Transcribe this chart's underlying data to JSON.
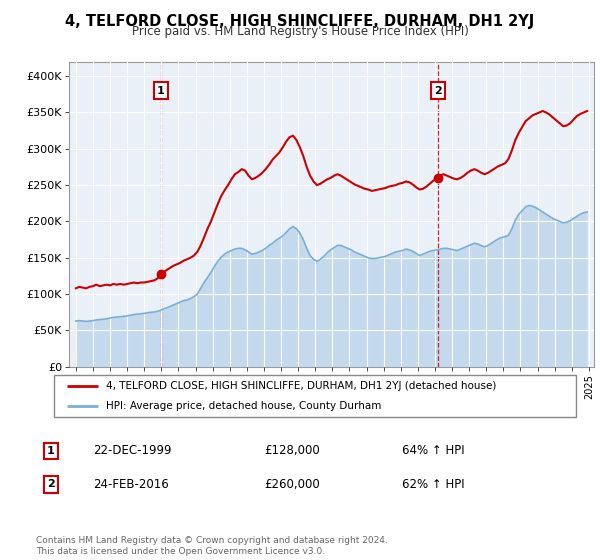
{
  "title": "4, TELFORD CLOSE, HIGH SHINCLIFFE, DURHAM, DH1 2YJ",
  "subtitle": "Price paid vs. HM Land Registry's House Price Index (HPI)",
  "legend_line1": "4, TELFORD CLOSE, HIGH SHINCLIFFE, DURHAM, DH1 2YJ (detached house)",
  "legend_line2": "HPI: Average price, detached house, County Durham",
  "transaction1_label": "1",
  "transaction1_date": "22-DEC-1999",
  "transaction1_price": "£128,000",
  "transaction1_hpi": "64% ↑ HPI",
  "transaction2_label": "2",
  "transaction2_date": "24-FEB-2016",
  "transaction2_price": "£260,000",
  "transaction2_hpi": "62% ↑ HPI",
  "footer": "Contains HM Land Registry data © Crown copyright and database right 2024.\nThis data is licensed under the Open Government Licence v3.0.",
  "price_color": "#cc0000",
  "hpi_color": "#7aafd4",
  "hpi_fill_color": "#c5d9ee",
  "background_color": "#eaf0f8",
  "ylim": [
    0,
    420000
  ],
  "yticks": [
    0,
    50000,
    100000,
    150000,
    200000,
    250000,
    300000,
    350000,
    400000
  ],
  "ytick_labels": [
    "£0",
    "£50K",
    "£100K",
    "£150K",
    "£200K",
    "£250K",
    "£300K",
    "£350K",
    "£400K"
  ],
  "transaction1_year": 1999.97,
  "transaction1_value": 128000,
  "transaction2_year": 2016.15,
  "transaction2_value": 260000,
  "price_data": [
    [
      1995.0,
      108000
    ],
    [
      1995.2,
      110000
    ],
    [
      1995.4,
      109000
    ],
    [
      1995.6,
      108000
    ],
    [
      1995.8,
      110000
    ],
    [
      1996.0,
      111000
    ],
    [
      1996.2,
      113000
    ],
    [
      1996.4,
      111000
    ],
    [
      1996.6,
      112000
    ],
    [
      1996.8,
      113000
    ],
    [
      1997.0,
      112000
    ],
    [
      1997.2,
      114000
    ],
    [
      1997.4,
      113000
    ],
    [
      1997.6,
      114000
    ],
    [
      1997.8,
      113000
    ],
    [
      1998.0,
      114000
    ],
    [
      1998.2,
      115000
    ],
    [
      1998.4,
      116000
    ],
    [
      1998.6,
      115000
    ],
    [
      1998.8,
      116000
    ],
    [
      1999.0,
      116000
    ],
    [
      1999.2,
      117000
    ],
    [
      1999.4,
      118000
    ],
    [
      1999.6,
      119000
    ],
    [
      1999.8,
      122000
    ],
    [
      1999.97,
      128000
    ],
    [
      2000.1,
      130000
    ],
    [
      2000.3,
      133000
    ],
    [
      2000.5,
      136000
    ],
    [
      2000.7,
      139000
    ],
    [
      2000.9,
      141000
    ],
    [
      2001.1,
      143000
    ],
    [
      2001.3,
      146000
    ],
    [
      2001.5,
      148000
    ],
    [
      2001.7,
      150000
    ],
    [
      2001.9,
      153000
    ],
    [
      2002.1,
      158000
    ],
    [
      2002.3,
      167000
    ],
    [
      2002.5,
      178000
    ],
    [
      2002.7,
      190000
    ],
    [
      2002.9,
      200000
    ],
    [
      2003.1,
      212000
    ],
    [
      2003.3,
      224000
    ],
    [
      2003.5,
      235000
    ],
    [
      2003.7,
      243000
    ],
    [
      2003.9,
      250000
    ],
    [
      2004.1,
      258000
    ],
    [
      2004.3,
      265000
    ],
    [
      2004.5,
      268000
    ],
    [
      2004.7,
      272000
    ],
    [
      2004.9,
      270000
    ],
    [
      2005.1,
      263000
    ],
    [
      2005.3,
      258000
    ],
    [
      2005.5,
      260000
    ],
    [
      2005.7,
      263000
    ],
    [
      2005.9,
      267000
    ],
    [
      2006.1,
      272000
    ],
    [
      2006.3,
      278000
    ],
    [
      2006.5,
      285000
    ],
    [
      2006.7,
      290000
    ],
    [
      2006.9,
      295000
    ],
    [
      2007.1,
      302000
    ],
    [
      2007.3,
      310000
    ],
    [
      2007.5,
      316000
    ],
    [
      2007.7,
      318000
    ],
    [
      2007.9,
      312000
    ],
    [
      2008.1,
      302000
    ],
    [
      2008.3,
      290000
    ],
    [
      2008.5,
      275000
    ],
    [
      2008.7,
      263000
    ],
    [
      2008.9,
      255000
    ],
    [
      2009.1,
      250000
    ],
    [
      2009.3,
      252000
    ],
    [
      2009.5,
      255000
    ],
    [
      2009.7,
      258000
    ],
    [
      2009.9,
      260000
    ],
    [
      2010.1,
      263000
    ],
    [
      2010.3,
      265000
    ],
    [
      2010.5,
      263000
    ],
    [
      2010.7,
      260000
    ],
    [
      2010.9,
      257000
    ],
    [
      2011.1,
      254000
    ],
    [
      2011.3,
      251000
    ],
    [
      2011.5,
      249000
    ],
    [
      2011.7,
      247000
    ],
    [
      2011.9,
      245000
    ],
    [
      2012.1,
      244000
    ],
    [
      2012.3,
      242000
    ],
    [
      2012.5,
      243000
    ],
    [
      2012.7,
      244000
    ],
    [
      2012.9,
      245000
    ],
    [
      2013.1,
      246000
    ],
    [
      2013.3,
      248000
    ],
    [
      2013.5,
      249000
    ],
    [
      2013.7,
      250000
    ],
    [
      2013.9,
      252000
    ],
    [
      2014.1,
      253000
    ],
    [
      2014.3,
      255000
    ],
    [
      2014.5,
      254000
    ],
    [
      2014.7,
      251000
    ],
    [
      2014.9,
      247000
    ],
    [
      2015.1,
      244000
    ],
    [
      2015.3,
      245000
    ],
    [
      2015.5,
      248000
    ],
    [
      2015.7,
      252000
    ],
    [
      2015.9,
      256000
    ],
    [
      2016.15,
      260000
    ],
    [
      2016.3,
      263000
    ],
    [
      2016.5,
      265000
    ],
    [
      2016.7,
      263000
    ],
    [
      2016.9,
      261000
    ],
    [
      2017.1,
      259000
    ],
    [
      2017.3,
      258000
    ],
    [
      2017.5,
      260000
    ],
    [
      2017.7,
      263000
    ],
    [
      2017.9,
      267000
    ],
    [
      2018.1,
      270000
    ],
    [
      2018.3,
      272000
    ],
    [
      2018.5,
      270000
    ],
    [
      2018.7,
      267000
    ],
    [
      2018.9,
      265000
    ],
    [
      2019.1,
      267000
    ],
    [
      2019.3,
      270000
    ],
    [
      2019.5,
      273000
    ],
    [
      2019.7,
      276000
    ],
    [
      2019.9,
      278000
    ],
    [
      2020.1,
      280000
    ],
    [
      2020.3,
      286000
    ],
    [
      2020.5,
      298000
    ],
    [
      2020.7,
      312000
    ],
    [
      2020.9,
      322000
    ],
    [
      2021.1,
      330000
    ],
    [
      2021.3,
      338000
    ],
    [
      2021.5,
      342000
    ],
    [
      2021.7,
      346000
    ],
    [
      2021.9,
      348000
    ],
    [
      2022.1,
      350000
    ],
    [
      2022.3,
      352000
    ],
    [
      2022.5,
      350000
    ],
    [
      2022.7,
      347000
    ],
    [
      2022.9,
      343000
    ],
    [
      2023.1,
      339000
    ],
    [
      2023.3,
      335000
    ],
    [
      2023.5,
      331000
    ],
    [
      2023.7,
      332000
    ],
    [
      2023.9,
      335000
    ],
    [
      2024.1,
      340000
    ],
    [
      2024.3,
      345000
    ],
    [
      2024.5,
      348000
    ],
    [
      2024.7,
      350000
    ],
    [
      2024.9,
      352000
    ]
  ],
  "hpi_data": [
    [
      1995.0,
      63000
    ],
    [
      1995.2,
      63500
    ],
    [
      1995.4,
      63000
    ],
    [
      1995.6,
      62500
    ],
    [
      1995.8,
      63000
    ],
    [
      1996.0,
      63500
    ],
    [
      1996.2,
      64500
    ],
    [
      1996.4,
      65000
    ],
    [
      1996.6,
      65500
    ],
    [
      1996.8,
      66000
    ],
    [
      1997.0,
      67000
    ],
    [
      1997.2,
      68000
    ],
    [
      1997.4,
      68500
    ],
    [
      1997.6,
      69000
    ],
    [
      1997.8,
      69500
    ],
    [
      1998.0,
      70000
    ],
    [
      1998.2,
      71000
    ],
    [
      1998.4,
      72000
    ],
    [
      1998.6,
      72500
    ],
    [
      1998.8,
      73000
    ],
    [
      1999.0,
      73500
    ],
    [
      1999.2,
      74500
    ],
    [
      1999.4,
      75000
    ],
    [
      1999.6,
      75500
    ],
    [
      1999.8,
      76500
    ],
    [
      1999.97,
      78000
    ],
    [
      2000.1,
      79500
    ],
    [
      2000.3,
      81000
    ],
    [
      2000.5,
      83000
    ],
    [
      2000.7,
      85000
    ],
    [
      2000.9,
      87000
    ],
    [
      2001.1,
      89000
    ],
    [
      2001.3,
      91000
    ],
    [
      2001.5,
      92000
    ],
    [
      2001.7,
      94000
    ],
    [
      2001.9,
      96500
    ],
    [
      2002.1,
      100000
    ],
    [
      2002.3,
      108000
    ],
    [
      2002.5,
      116000
    ],
    [
      2002.7,
      123000
    ],
    [
      2002.9,
      130000
    ],
    [
      2003.1,
      138000
    ],
    [
      2003.3,
      145000
    ],
    [
      2003.5,
      151000
    ],
    [
      2003.7,
      155000
    ],
    [
      2003.9,
      158000
    ],
    [
      2004.1,
      160000
    ],
    [
      2004.3,
      162000
    ],
    [
      2004.5,
      163000
    ],
    [
      2004.7,
      163000
    ],
    [
      2004.9,
      161000
    ],
    [
      2005.1,
      158000
    ],
    [
      2005.3,
      155000
    ],
    [
      2005.5,
      156000
    ],
    [
      2005.7,
      158000
    ],
    [
      2005.9,
      160000
    ],
    [
      2006.1,
      163000
    ],
    [
      2006.3,
      167000
    ],
    [
      2006.5,
      170000
    ],
    [
      2006.7,
      174000
    ],
    [
      2006.9,
      177000
    ],
    [
      2007.1,
      180000
    ],
    [
      2007.3,
      185000
    ],
    [
      2007.5,
      190000
    ],
    [
      2007.7,
      193000
    ],
    [
      2007.9,
      190000
    ],
    [
      2008.1,
      184000
    ],
    [
      2008.3,
      175000
    ],
    [
      2008.5,
      163000
    ],
    [
      2008.7,
      153000
    ],
    [
      2008.9,
      148000
    ],
    [
      2009.1,
      145000
    ],
    [
      2009.3,
      148000
    ],
    [
      2009.5,
      152000
    ],
    [
      2009.7,
      157000
    ],
    [
      2009.9,
      161000
    ],
    [
      2010.1,
      164000
    ],
    [
      2010.3,
      167000
    ],
    [
      2010.5,
      167000
    ],
    [
      2010.7,
      165000
    ],
    [
      2010.9,
      163000
    ],
    [
      2011.1,
      161000
    ],
    [
      2011.3,
      158000
    ],
    [
      2011.5,
      156000
    ],
    [
      2011.7,
      154000
    ],
    [
      2011.9,
      152000
    ],
    [
      2012.1,
      150000
    ],
    [
      2012.3,
      149000
    ],
    [
      2012.5,
      149000
    ],
    [
      2012.7,
      150000
    ],
    [
      2012.9,
      151000
    ],
    [
      2013.1,
      152000
    ],
    [
      2013.3,
      154000
    ],
    [
      2013.5,
      156000
    ],
    [
      2013.7,
      158000
    ],
    [
      2013.9,
      159000
    ],
    [
      2014.1,
      160000
    ],
    [
      2014.3,
      162000
    ],
    [
      2014.5,
      161000
    ],
    [
      2014.7,
      159000
    ],
    [
      2014.9,
      156000
    ],
    [
      2015.1,
      153000
    ],
    [
      2015.3,
      155000
    ],
    [
      2015.5,
      157000
    ],
    [
      2015.7,
      159000
    ],
    [
      2015.9,
      160000
    ],
    [
      2016.15,
      161000
    ],
    [
      2016.3,
      162000
    ],
    [
      2016.5,
      163000
    ],
    [
      2016.7,
      163000
    ],
    [
      2016.9,
      162000
    ],
    [
      2017.1,
      161000
    ],
    [
      2017.3,
      160000
    ],
    [
      2017.5,
      162000
    ],
    [
      2017.7,
      164000
    ],
    [
      2017.9,
      166000
    ],
    [
      2018.1,
      168000
    ],
    [
      2018.3,
      170000
    ],
    [
      2018.5,
      169000
    ],
    [
      2018.7,
      167000
    ],
    [
      2018.9,
      165000
    ],
    [
      2019.1,
      167000
    ],
    [
      2019.3,
      170000
    ],
    [
      2019.5,
      173000
    ],
    [
      2019.7,
      176000
    ],
    [
      2019.9,
      178000
    ],
    [
      2020.1,
      179000
    ],
    [
      2020.3,
      181000
    ],
    [
      2020.5,
      190000
    ],
    [
      2020.7,
      202000
    ],
    [
      2020.9,
      210000
    ],
    [
      2021.1,
      215000
    ],
    [
      2021.3,
      220000
    ],
    [
      2021.5,
      222000
    ],
    [
      2021.7,
      221000
    ],
    [
      2021.9,
      219000
    ],
    [
      2022.1,
      216000
    ],
    [
      2022.3,
      213000
    ],
    [
      2022.5,
      210000
    ],
    [
      2022.7,
      207000
    ],
    [
      2022.9,
      204000
    ],
    [
      2023.1,
      202000
    ],
    [
      2023.3,
      200000
    ],
    [
      2023.5,
      198000
    ],
    [
      2023.7,
      199000
    ],
    [
      2023.9,
      201000
    ],
    [
      2024.1,
      204000
    ],
    [
      2024.3,
      207000
    ],
    [
      2024.5,
      210000
    ],
    [
      2024.7,
      212000
    ],
    [
      2024.9,
      213000
    ]
  ]
}
